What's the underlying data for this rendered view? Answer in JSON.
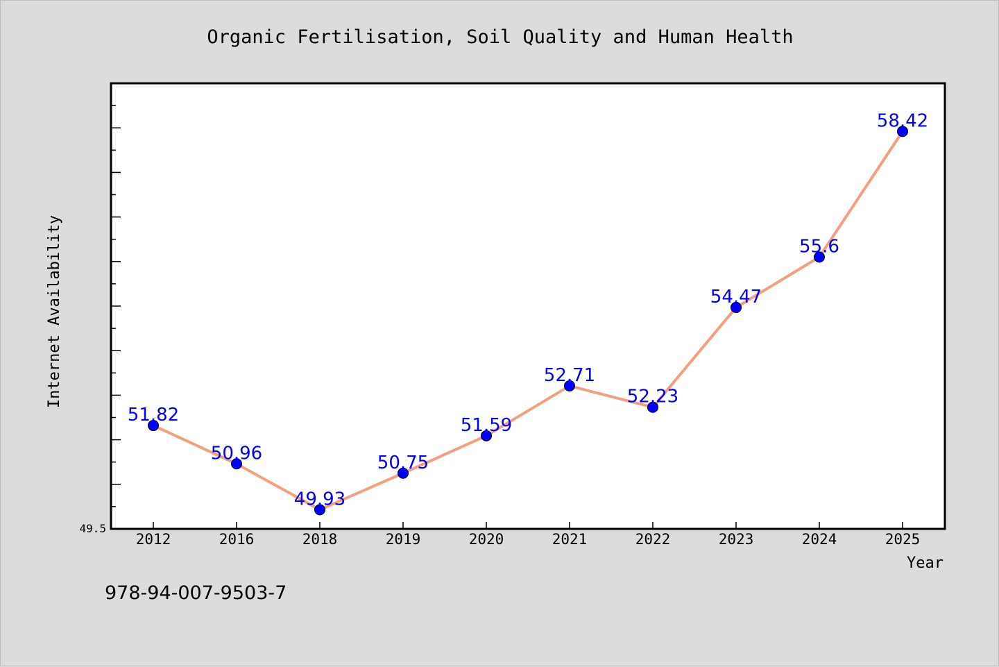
{
  "isbn": "978-94-007-9503-7",
  "chart_data": {
    "type": "line",
    "title": "Organic Fertilisation, Soil Quality and Human Health",
    "xlabel": "Year",
    "ylabel": "Internet Availability",
    "categories": [
      "2012",
      "2016",
      "2018",
      "2019",
      "2020",
      "2021",
      "2022",
      "2023",
      "2024",
      "2025"
    ],
    "series": [
      {
        "values": [
          51.82,
          50.96,
          49.93,
          50.75,
          51.59,
          52.71,
          52.23,
          54.47,
          55.6,
          58.42
        ],
        "labels": [
          "51.82",
          "50.96",
          "49.93",
          "50.75",
          "51.59",
          "52.71",
          "52.23",
          "54.47",
          "55.6",
          "58.42"
        ]
      }
    ],
    "y_tick_label": "49.5",
    "ylim": [
      49.5,
      59.5
    ],
    "grid": false,
    "legend": "none",
    "colors": {
      "line": "#f4a07e",
      "marker": "#0000ff",
      "data_label": "#0000ff",
      "plot_bg": "#ffffff",
      "page_bg": "#dcdcdc"
    }
  }
}
